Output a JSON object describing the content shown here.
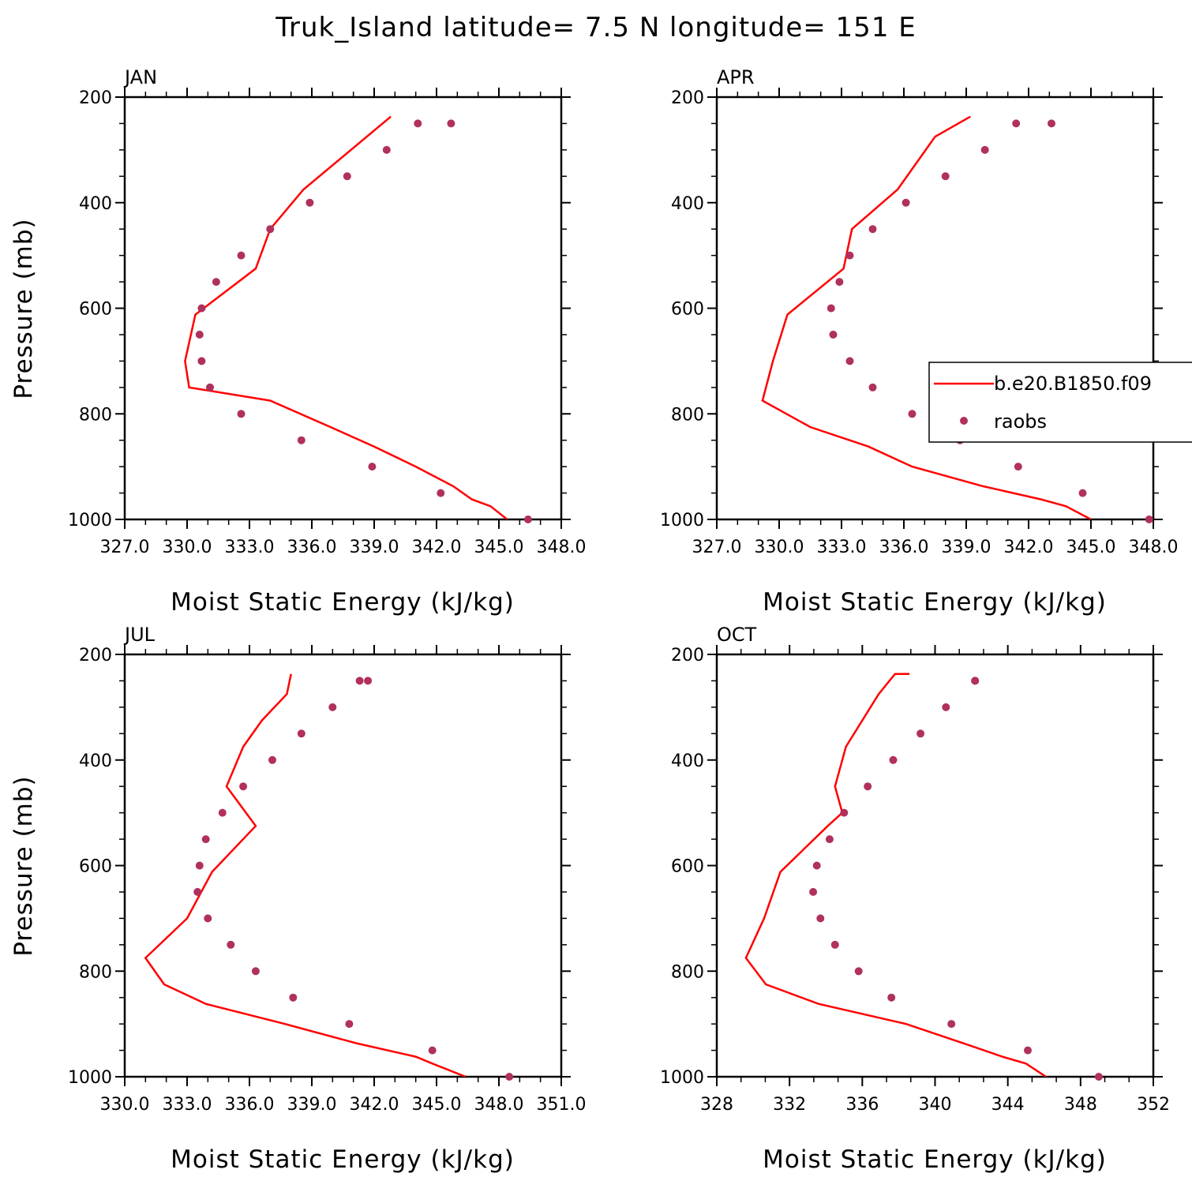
{
  "title": "Truk_Island  latitude= 7.5 N longitude= 151 E",
  "colors": {
    "model": "#ff0000",
    "obs": "#b0305e",
    "axis": "#000000"
  },
  "legend": {
    "model": "b.e20.B1850.f09",
    "obs": "raobs",
    "placement": "right-middle (inside APR panel)"
  },
  "chart_data": [
    {
      "type": "line",
      "panel": "JAN",
      "xlabel": "Moist Static Energy (kJ/kg)",
      "ylabel": "Pressure (mb)",
      "xlim": [
        327,
        348
      ],
      "ylim": [
        1000,
        200
      ],
      "x_tick_labels": [
        "327.0",
        "330.0",
        "333.0",
        "336.0",
        "339.0",
        "342.0",
        "345.0",
        "348.0"
      ],
      "y_tick_labels": [
        "200",
        "400",
        "600",
        "800",
        "1000"
      ],
      "series": [
        {
          "name": "b.e20.B1850.f09",
          "style": "line",
          "x": [
            345.4,
            344.6,
            343.7,
            342.8,
            341.0,
            339.0,
            336.9,
            334.0,
            330.1,
            329.9,
            330.4,
            333.3,
            334.0,
            335.6,
            339.8
          ],
          "y": [
            1000,
            975,
            962,
            937,
            900,
            862,
            825,
            775,
            750,
            700,
            612,
            525,
            450,
            375,
            237
          ]
        },
        {
          "name": "raobs",
          "style": "markers",
          "x": [
            346.4,
            342.2,
            338.9,
            335.5,
            332.6,
            331.1,
            330.7,
            330.6,
            330.7,
            331.4,
            332.6,
            334.0,
            335.9,
            337.7,
            339.6,
            341.1,
            342.7
          ],
          "y": [
            1000,
            950,
            900,
            850,
            800,
            750,
            700,
            650,
            600,
            550,
            500,
            450,
            400,
            350,
            300,
            250,
            250
          ]
        }
      ]
    },
    {
      "type": "line",
      "panel": "APR",
      "xlabel": "Moist Static Energy (kJ/kg)",
      "ylabel": "",
      "xlim": [
        327,
        348
      ],
      "ylim": [
        1000,
        200
      ],
      "x_tick_labels": [
        "327.0",
        "330.0",
        "333.0",
        "336.0",
        "339.0",
        "342.0",
        "345.0",
        "348.0"
      ],
      "y_tick_labels": [
        "200",
        "400",
        "600",
        "800",
        "1000"
      ],
      "series": [
        {
          "name": "b.e20.B1850.f09",
          "style": "line",
          "x": [
            345.0,
            343.8,
            342.6,
            339.8,
            336.4,
            334.3,
            331.5,
            329.2,
            329.7,
            330.4,
            333.1,
            333.5,
            335.7,
            337.5,
            339.2
          ],
          "y": [
            1000,
            975,
            962,
            937,
            900,
            862,
            825,
            775,
            700,
            612,
            525,
            450,
            375,
            275,
            237
          ]
        },
        {
          "name": "raobs",
          "style": "markers",
          "x": [
            347.8,
            344.6,
            341.5,
            338.7,
            336.4,
            334.5,
            333.4,
            332.6,
            332.5,
            332.9,
            333.4,
            334.5,
            336.1,
            338.0,
            339.9,
            341.4,
            343.1
          ],
          "y": [
            1000,
            950,
            900,
            850,
            800,
            750,
            700,
            650,
            600,
            550,
            500,
            450,
            400,
            350,
            300,
            250,
            250
          ]
        }
      ]
    },
    {
      "type": "line",
      "panel": "JUL",
      "xlabel": "Moist Static Energy (kJ/kg)",
      "ylabel": "Pressure (mb)",
      "xlim": [
        330,
        351
      ],
      "ylim": [
        1000,
        200
      ],
      "x_tick_labels": [
        "330.0",
        "333.0",
        "336.0",
        "339.0",
        "342.0",
        "345.0",
        "348.0",
        "351.0"
      ],
      "y_tick_labels": [
        "200",
        "400",
        "600",
        "800",
        "1000"
      ],
      "series": [
        {
          "name": "b.e20.B1850.f09",
          "style": "line",
          "x": [
            346.4,
            344.8,
            344.0,
            341.2,
            337.7,
            333.9,
            331.9,
            331.0,
            333.0,
            334.2,
            336.3,
            334.9,
            335.7,
            336.6,
            337.8,
            338.0
          ],
          "y": [
            1000,
            975,
            962,
            937,
            900,
            862,
            825,
            775,
            700,
            612,
            525,
            450,
            375,
            325,
            275,
            237
          ]
        },
        {
          "name": "raobs",
          "style": "markers",
          "x": [
            348.5,
            344.8,
            340.8,
            338.1,
            336.3,
            335.1,
            334.0,
            333.5,
            333.6,
            333.9,
            334.7,
            335.7,
            337.1,
            338.5,
            340.0,
            341.3,
            341.7
          ],
          "y": [
            1000,
            950,
            900,
            850,
            800,
            750,
            700,
            650,
            600,
            550,
            500,
            450,
            400,
            350,
            300,
            250,
            250
          ]
        }
      ]
    },
    {
      "type": "line",
      "panel": "OCT",
      "xlabel": "Moist Static Energy (kJ/kg)",
      "ylabel": "",
      "xlim": [
        328,
        352
      ],
      "ylim": [
        1000,
        200
      ],
      "x_tick_labels": [
        "328",
        "332",
        "336",
        "340",
        "344",
        "348",
        "352"
      ],
      "y_tick_labels": [
        "200",
        "400",
        "600",
        "800",
        "1000"
      ],
      "series": [
        {
          "name": "b.e20.B1850.f09",
          "style": "line",
          "x": [
            346.1,
            345.0,
            343.7,
            341.6,
            338.4,
            333.6,
            330.7,
            329.6,
            330.6,
            331.5,
            334.1,
            334.9,
            334.5,
            335.1,
            336.9,
            337.8,
            338.6
          ],
          "y": [
            1000,
            975,
            962,
            937,
            900,
            862,
            825,
            775,
            700,
            612,
            525,
            500,
            450,
            375,
            275,
            237,
            237
          ]
        },
        {
          "name": "raobs",
          "style": "markers",
          "x": [
            349.0,
            345.1,
            340.9,
            337.6,
            335.8,
            334.5,
            333.7,
            333.3,
            333.5,
            334.2,
            335.0,
            336.3,
            337.7,
            339.2,
            340.6,
            342.2,
            342.2
          ],
          "y": [
            1000,
            950,
            900,
            850,
            800,
            750,
            700,
            650,
            600,
            550,
            500,
            450,
            400,
            350,
            300,
            250,
            250
          ]
        }
      ]
    }
  ]
}
